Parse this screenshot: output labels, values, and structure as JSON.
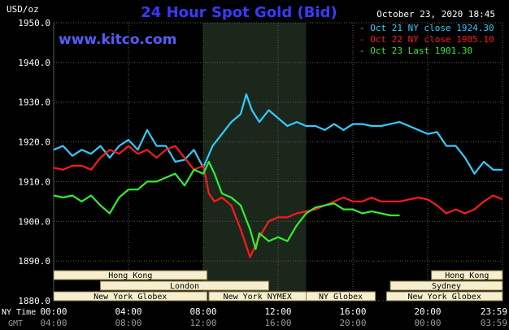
{
  "chart_data": {
    "type": "line",
    "title": "24 Hour Spot Gold (Bid)",
    "watermark": "www.kitco.com",
    "timestamp": "October 23, 2020 18:45",
    "ylabel": "USD/oz",
    "ylim": [
      1880,
      1950
    ],
    "yticks": [
      "1950.0",
      "1940.0",
      "1930.0",
      "1920.0",
      "1910.0",
      "1900.0",
      "1890.0",
      "1880.0"
    ],
    "x_axis": {
      "rows": [
        {
          "label": "NY Time",
          "ticks": [
            "00:00",
            "04:00",
            "08:00",
            "12:00",
            "16:00",
            "20:00",
            "23:59"
          ]
        },
        {
          "label": "GMT",
          "ticks": [
            "04:00",
            "08:00",
            "12:00",
            "16:00",
            "20:00",
            "00:00",
            "03:59"
          ]
        }
      ],
      "xlim": [
        0,
        24
      ]
    },
    "highlight_band_hours": [
      8,
      13.5
    ],
    "grid": true,
    "legend_position": "top-right",
    "series": [
      {
        "name": "Oct 21 NY close 1924.30",
        "color": "#33ccff",
        "x": [
          0,
          0.5,
          1,
          1.5,
          2,
          2.5,
          3,
          3.5,
          4,
          4.5,
          5,
          5.5,
          6,
          6.5,
          7,
          7.5,
          8,
          8.5,
          9,
          9.5,
          10,
          10.3,
          10.6,
          11,
          11.5,
          12,
          12.5,
          13,
          13.5,
          14,
          14.5,
          15,
          15.5,
          16,
          16.5,
          17,
          17.5,
          18,
          18.5,
          19,
          19.5,
          20,
          20.5,
          21,
          21.5,
          22,
          22.5,
          23,
          23.5,
          24
        ],
        "y": [
          1918,
          1919,
          1916.5,
          1918,
          1917,
          1919,
          1916,
          1919,
          1920.5,
          1918,
          1923,
          1919,
          1919,
          1915,
          1915.5,
          1918,
          1913.5,
          1919,
          1922,
          1925,
          1927,
          1932,
          1928,
          1925,
          1928,
          1926,
          1924,
          1925,
          1924,
          1924,
          1923,
          1924.5,
          1923,
          1924.5,
          1924.5,
          1924,
          1924,
          1924.5,
          1925,
          1924,
          1923,
          1922,
          1922.5,
          1919,
          1919,
          1916,
          1912,
          1915,
          1913,
          1913
        ]
      },
      {
        "name": "Oct 22 NY close 1905.10",
        "color": "#ff1a1a",
        "x": [
          0,
          0.5,
          1,
          1.5,
          2,
          2.5,
          3,
          3.5,
          4,
          4.5,
          5,
          5.5,
          6,
          6.5,
          7,
          7.5,
          8,
          8.3,
          8.6,
          9,
          9.5,
          10,
          10.5,
          11,
          11.5,
          12,
          12.5,
          13,
          13.5,
          14,
          14.5,
          15,
          15.5,
          16,
          16.5,
          17,
          17.5,
          18,
          18.5,
          19,
          19.5,
          20,
          20.5,
          21,
          21.5,
          22,
          22.5,
          23,
          23.5,
          24
        ],
        "y": [
          1913.5,
          1913,
          1914,
          1914,
          1913,
          1916,
          1918,
          1917,
          1919,
          1917,
          1918,
          1916,
          1918,
          1919,
          1916,
          1913,
          1914,
          1907,
          1905,
          1906,
          1904,
          1898,
          1891,
          1896,
          1900,
          1901,
          1901,
          1902,
          1902.5,
          1903,
          1904,
          1905,
          1906,
          1905,
          1905,
          1906,
          1905,
          1905,
          1905,
          1905.5,
          1906,
          1905.5,
          1904,
          1902,
          1903,
          1902,
          1903,
          1905,
          1906.5,
          1905.5
        ]
      },
      {
        "name": "Oct 23 Last 1901.30",
        "color": "#33ee33",
        "x": [
          0,
          0.5,
          1,
          1.5,
          2,
          2.5,
          3,
          3.5,
          4,
          4.5,
          5,
          5.5,
          6,
          6.5,
          7,
          7.5,
          8,
          8.3,
          8.6,
          9,
          9.5,
          10,
          10.5,
          10.8,
          11,
          11.5,
          12,
          12.5,
          13,
          13.5,
          14,
          14.5,
          15,
          15.5,
          16,
          16.5,
          17,
          17.5,
          18,
          18.5
        ],
        "y": [
          1906.5,
          1906,
          1906.5,
          1905,
          1906.5,
          1904,
          1902,
          1906,
          1908,
          1908,
          1910,
          1910,
          1911,
          1912,
          1909,
          1913,
          1912,
          1915,
          1912,
          1907,
          1906,
          1904,
          1898,
          1893,
          1897,
          1895,
          1896,
          1895,
          1899,
          1902,
          1903.5,
          1904,
          1904.5,
          1903,
          1903,
          1902,
          1902.5,
          1902,
          1901.5,
          1901.5
        ]
      }
    ],
    "sessions": [
      {
        "label": "Hong Kong",
        "start": 0,
        "end": 8.2,
        "row": 0
      },
      {
        "label": "London",
        "start": 2.5,
        "end": 11.5,
        "row": 1
      },
      {
        "label": "New York Globex",
        "start": 0,
        "end": 8.2,
        "row": 2
      },
      {
        "label": "New York NYMEX",
        "start": 8.3,
        "end": 13.5,
        "row": 2
      },
      {
        "label": "NY Globex",
        "start": 13.5,
        "end": 17.2,
        "row": 2
      },
      {
        "label": "Hong Kong",
        "start": 20.2,
        "end": 24,
        "row": 0
      },
      {
        "label": "Sydney",
        "start": 18,
        "end": 24,
        "row": 1
      },
      {
        "label": "New York Globex",
        "start": 17.8,
        "end": 24,
        "row": 2
      }
    ],
    "colors": {
      "background": "#000000",
      "grid": "#5a5a5a",
      "text": "#ffffff",
      "title": "#3a3aff",
      "band": "#1c271c",
      "session_fill": "#f5efcf",
      "session_border": "#8a7a45",
      "session_text": "#000000"
    }
  }
}
